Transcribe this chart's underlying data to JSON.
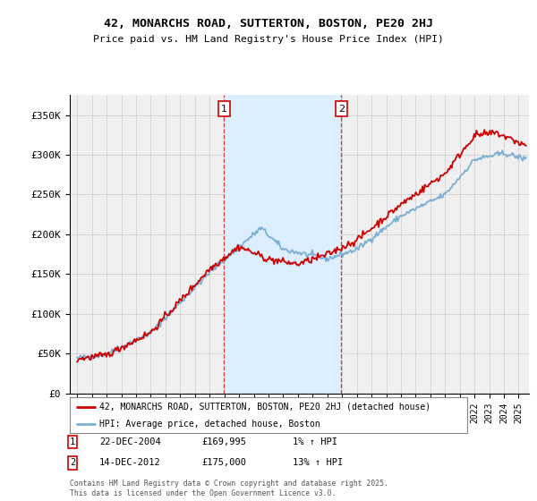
{
  "title": "42, MONARCHS ROAD, SUTTERTON, BOSTON, PE20 2HJ",
  "subtitle": "Price paid vs. HM Land Registry's House Price Index (HPI)",
  "ylabel_ticks": [
    "£0",
    "£50K",
    "£100K",
    "£150K",
    "£200K",
    "£250K",
    "£300K",
    "£350K"
  ],
  "ytick_values": [
    0,
    50000,
    100000,
    150000,
    200000,
    250000,
    300000,
    350000
  ],
  "ylim": [
    0,
    375000
  ],
  "sale1": {
    "date_num": 2004.97,
    "price": 169995,
    "label": "1",
    "date_str": "22-DEC-2004",
    "hpi_pct": "1%"
  },
  "sale2": {
    "date_num": 2012.95,
    "price": 175000,
    "label": "2",
    "date_str": "14-DEC-2012",
    "hpi_pct": "13%"
  },
  "red_color": "#cc0000",
  "blue_color": "#7aafd4",
  "shade_color": "#ddeeff",
  "background_color": "#f0f0f0",
  "grid_color": "#cccccc",
  "legend1": "42, MONARCHS ROAD, SUTTERTON, BOSTON, PE20 2HJ (detached house)",
  "legend2": "HPI: Average price, detached house, Boston",
  "footnote": "Contains HM Land Registry data © Crown copyright and database right 2025.\nThis data is licensed under the Open Government Licence v3.0.",
  "xlim_start": 1994.5,
  "xlim_end": 2025.7
}
